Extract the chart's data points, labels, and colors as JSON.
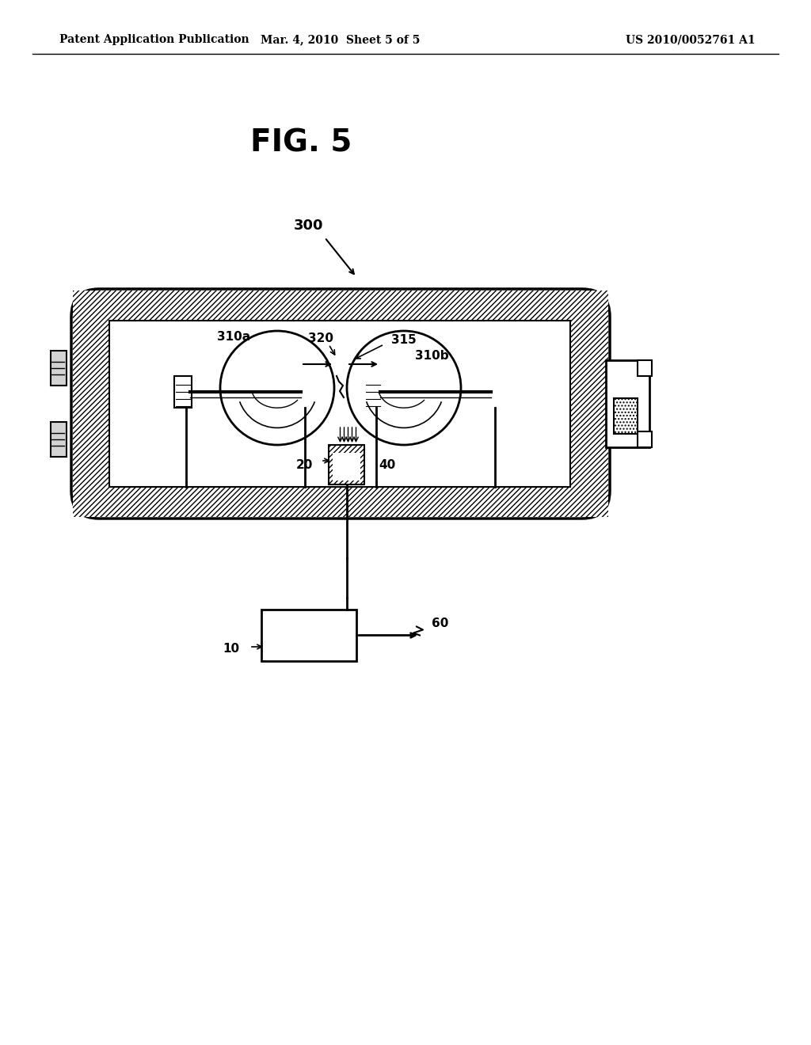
{
  "bg_color": "#ffffff",
  "line_color": "#000000",
  "hatch_color": "#000000",
  "header_left": "Patent Application Publication",
  "header_mid": "Mar. 4, 2010  Sheet 5 of 5",
  "header_right": "US 2010/0052761 A1",
  "fig_label": "FIG. 5",
  "label_300": "300",
  "label_310a": "310a",
  "label_310b": "310b",
  "label_315": "315",
  "label_320": "320",
  "label_20": "20",
  "label_40": "40",
  "label_60": "60",
  "label_10": "10"
}
